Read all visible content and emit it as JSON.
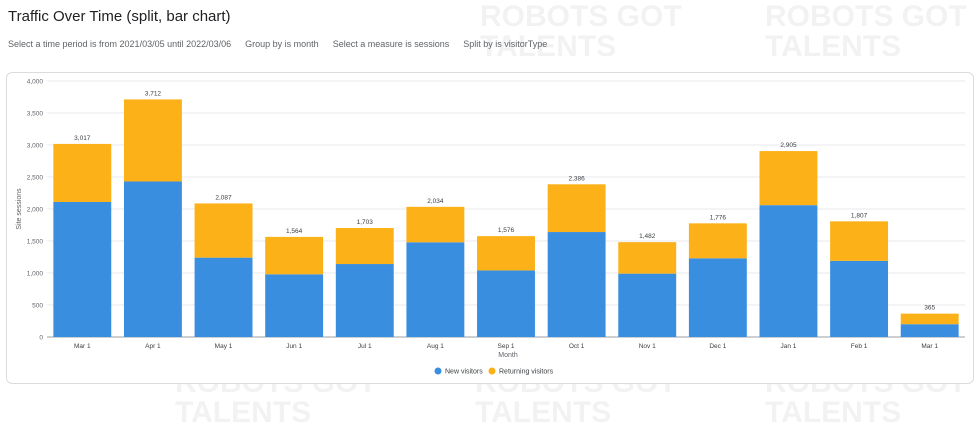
{
  "title": "Traffic Over Time (split, bar chart)",
  "filters": [
    "Select a time period is from 2021/03/05 until 2022/03/06",
    "Group by is month",
    "Select a measure is sessions",
    "Split by is visitorType"
  ],
  "watermark": "ROBOTS GOT\nTALENTS",
  "colors": {
    "new": "#3a8ee0",
    "returning": "#fbb117",
    "grid": "#e8eaed",
    "axis": "#9aa0a6"
  },
  "chart_data": {
    "type": "bar",
    "stacked": true,
    "xlabel": "Month",
    "ylabel": "Site sessions",
    "ylim": [
      0,
      4000
    ],
    "yticks": [
      "0",
      "500",
      "1,000",
      "1,500",
      "2,000",
      "2,500",
      "3,000",
      "3,500",
      "4,000"
    ],
    "categories": [
      "Mar 1",
      "Apr 1",
      "May 1",
      "Jun 1",
      "Jul 1",
      "Aug 1",
      "Sep 1",
      "Oct 1",
      "Nov 1",
      "Dec 1",
      "Jan 1",
      "Feb 1",
      "Mar 1"
    ],
    "series": [
      {
        "name": "New visitors",
        "values": [
          2110,
          2430,
          1240,
          980,
          1140,
          1480,
          1040,
          1640,
          990,
          1230,
          2060,
          1190,
          200
        ]
      },
      {
        "name": "Returning visitors",
        "values": [
          907,
          1282,
          847,
          584,
          563,
          554,
          536,
          746,
          492,
          546,
          845,
          617,
          165
        ]
      }
    ],
    "totals": [
      "3,017",
      "3,712",
      "2,087",
      "1,564",
      "1,703",
      "2,034",
      "1,576",
      "2,386",
      "1,482",
      "1,776",
      "2,905",
      "1,807",
      "365"
    ],
    "legend_position": "bottom",
    "grid": true
  }
}
